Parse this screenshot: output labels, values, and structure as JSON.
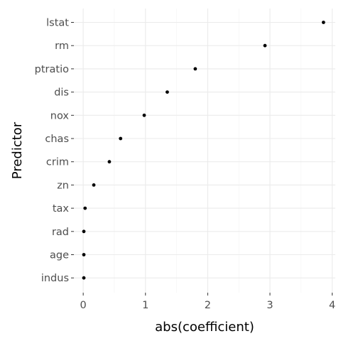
{
  "chart_data": {
    "type": "scatter",
    "title": "",
    "xlabel": "abs(coefficient)",
    "ylabel": "Predictor",
    "xlim": [
      -0.15,
      4.05
    ],
    "x_ticks": [
      0,
      1,
      2,
      3,
      4
    ],
    "x_tick_labels": [
      "0",
      "1",
      "2",
      "3",
      "4"
    ],
    "grid": true,
    "legend": "none",
    "categories": [
      "lstat",
      "rm",
      "ptratio",
      "dis",
      "nox",
      "chas",
      "crim",
      "zn",
      "tax",
      "rad",
      "age",
      "indus"
    ],
    "values": [
      3.86,
      2.92,
      1.8,
      1.35,
      0.98,
      0.6,
      0.42,
      0.17,
      0.03,
      0.01,
      0.01,
      0.01
    ]
  }
}
